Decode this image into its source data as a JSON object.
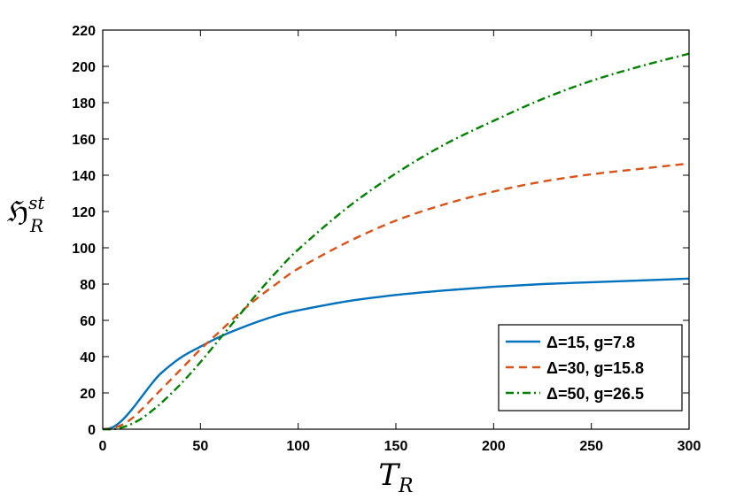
{
  "chart_data": {
    "type": "line",
    "title": "",
    "xlabel": {
      "main": "T",
      "sub": "R"
    },
    "ylabel": {
      "main": "ℌ",
      "sub": "R",
      "sup": "st"
    },
    "xlim": [
      0,
      300
    ],
    "ylim": [
      0,
      220
    ],
    "xticks": [
      0,
      50,
      100,
      150,
      200,
      250,
      300
    ],
    "yticks": [
      0,
      20,
      40,
      60,
      80,
      100,
      120,
      140,
      160,
      180,
      200,
      220
    ],
    "grid": false,
    "legend_position": "bottom-right",
    "series": [
      {
        "name": "Δ=15, g=7.8",
        "color": "#0072BD",
        "style": "solid",
        "x": [
          0,
          5,
          10,
          15,
          20,
          25,
          30,
          40,
          50,
          60,
          70,
          80,
          90,
          100,
          125,
          150,
          175,
          200,
          225,
          250,
          275,
          300
        ],
        "y": [
          0,
          1,
          5,
          11,
          18,
          25,
          31,
          39.5,
          45.5,
          51,
          55.5,
          59.5,
          63,
          65.5,
          70.5,
          74,
          76.5,
          78.5,
          80,
          81,
          82,
          83
        ]
      },
      {
        "name": "Δ=30, g=15.8",
        "color": "#D95319",
        "style": "dashed",
        "x": [
          0,
          5,
          10,
          15,
          20,
          25,
          30,
          40,
          50,
          60,
          70,
          80,
          90,
          100,
          125,
          150,
          175,
          200,
          225,
          250,
          275,
          300
        ],
        "y": [
          0,
          0.5,
          2.5,
          6,
          11,
          16.5,
          22,
          33,
          44,
          54,
          64,
          73,
          81,
          88.5,
          103,
          115,
          124,
          131,
          136.5,
          140.5,
          143.5,
          146.5
        ]
      },
      {
        "name": "Δ=50, g=26.5",
        "color": "#008000",
        "style": "dashdot",
        "x": [
          0,
          5,
          10,
          15,
          20,
          25,
          30,
          40,
          50,
          60,
          70,
          80,
          90,
          100,
          125,
          150,
          175,
          200,
          225,
          250,
          275,
          300
        ],
        "y": [
          0,
          0,
          1,
          3,
          6,
          10,
          14.5,
          25,
          37,
          50,
          63,
          76,
          88,
          99,
          122,
          141,
          157,
          170,
          182,
          192,
          200,
          207
        ]
      }
    ]
  }
}
